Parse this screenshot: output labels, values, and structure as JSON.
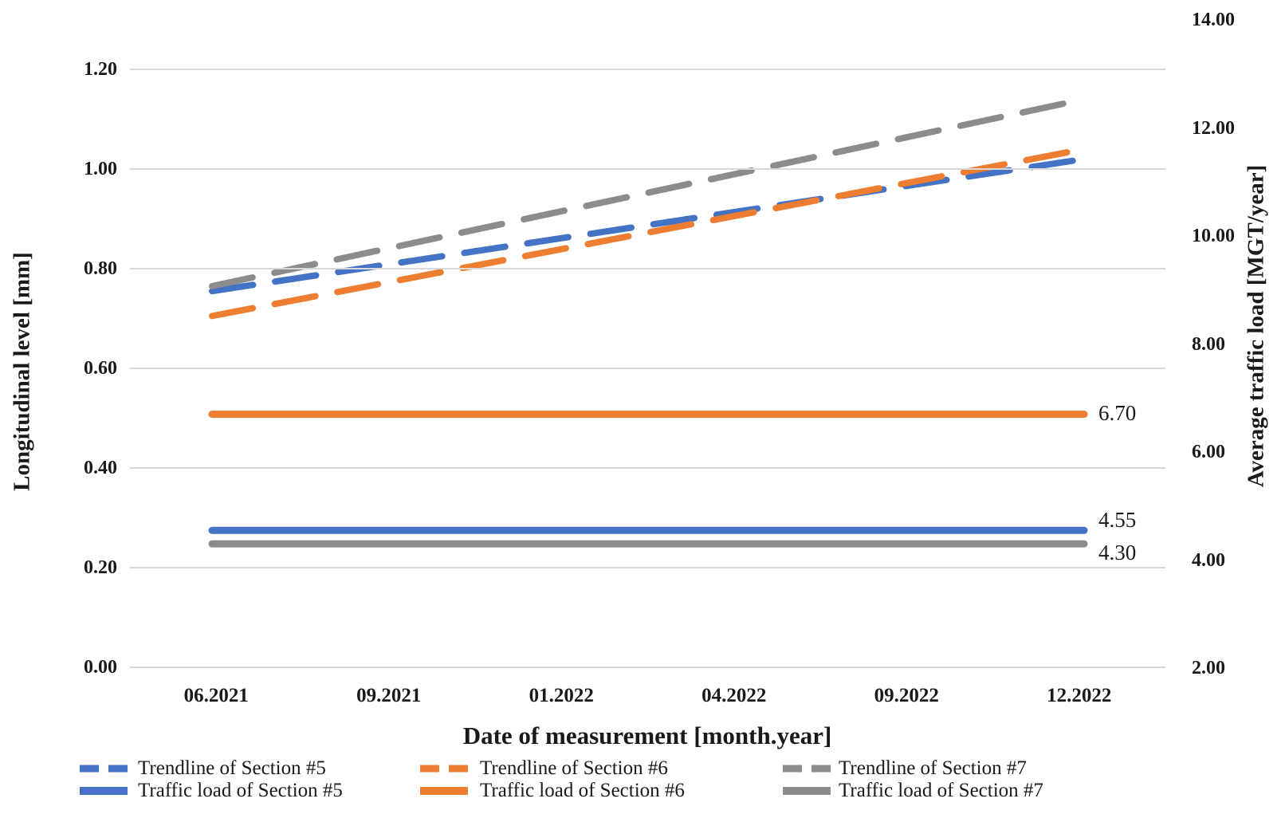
{
  "figure": {
    "background_color": "#ffffff",
    "text_color": "#1a1a1a",
    "gridline_color": "#d9d9d9"
  },
  "chart_data": {
    "type": "line",
    "title": "",
    "grid": "horizontal",
    "x_axis": {
      "title": "Date of measurement [month.year]",
      "categories": [
        "06.2021",
        "09.2021",
        "01.2022",
        "04.2022",
        "09.2022",
        "12.2022"
      ]
    },
    "left_axis": {
      "title": "Longitudinal level [mm]",
      "min": 0.0,
      "max": 1.2,
      "tick_labels": [
        "1.20",
        "1.00",
        "0.80",
        "0.60",
        "0.40",
        "0.20",
        "0.00"
      ],
      "tick_values": [
        1.2,
        1.0,
        0.8,
        0.6,
        0.4,
        0.2,
        0.0
      ]
    },
    "right_axis": {
      "title": "Average traffic load [MGT/year]",
      "min": 2.0,
      "max": 14.0,
      "tick_labels": [
        "14.00",
        "12.00",
        "10.00",
        "8.00",
        "6.00",
        "4.00",
        "2.00"
      ],
      "tick_values": [
        14,
        12,
        10,
        8,
        6,
        4,
        2
      ]
    },
    "series": [
      {
        "name": "Trendline of Section #5",
        "kind": "trendline",
        "line_style": "dashed",
        "color": "#4472C4",
        "axis": "left",
        "start": 0.755,
        "end": 1.02
      },
      {
        "name": "Trendline of Section #6",
        "kind": "trendline",
        "line_style": "dashed",
        "color": "#ED7D31",
        "axis": "left",
        "start": 0.705,
        "end": 1.04
      },
      {
        "name": "Trendline of Section #7",
        "kind": "trendline",
        "line_style": "dashed",
        "color": "#8C8C8C",
        "axis": "left",
        "start": 0.765,
        "end": 1.14
      },
      {
        "name": "Traffic load of Section #5",
        "kind": "traffic-load",
        "line_style": "solid",
        "color": "#4472C4",
        "axis": "right",
        "value": 4.55,
        "data_label": "4.55"
      },
      {
        "name": "Traffic load of Section #6",
        "kind": "traffic-load",
        "line_style": "solid",
        "color": "#ED7D31",
        "axis": "right",
        "value": 6.7,
        "data_label": "6.70"
      },
      {
        "name": "Traffic load of Section #7",
        "kind": "traffic-load",
        "line_style": "solid",
        "color": "#8C8C8C",
        "axis": "right",
        "value": 4.3,
        "data_label": "4.30"
      }
    ],
    "legend": {
      "position": "bottom",
      "rows": [
        [
          "Trendline of Section #5",
          "Trendline of Section #6",
          "Trendline of Section #7"
        ],
        [
          "Traffic load of Section #5",
          "Traffic load of Section #6",
          "Traffic load of Section #7"
        ]
      ]
    }
  }
}
